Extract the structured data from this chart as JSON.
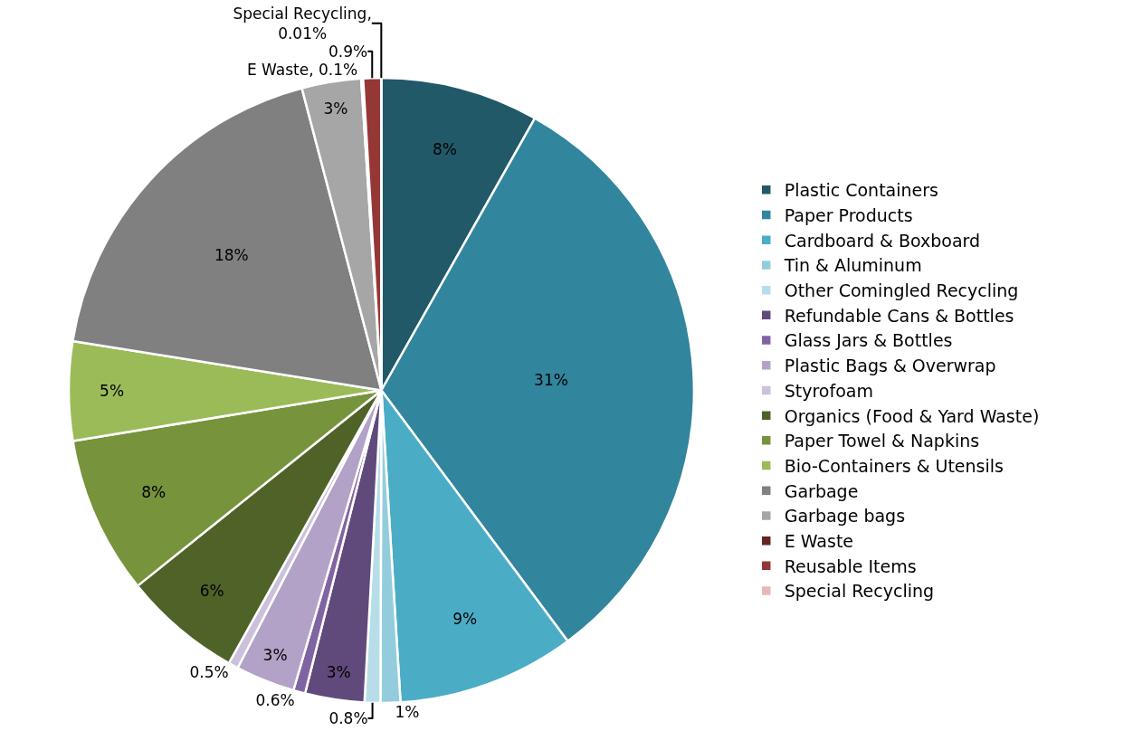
{
  "chart_data": {
    "type": "pie",
    "categories": [
      "Plastic Containers",
      "Paper Products",
      "Cardboard & Boxboard",
      "Tin & Aluminum",
      "Other Comingled Recycling",
      "Refundable Cans & Bottles",
      "Glass Jars & Bottles",
      "Plastic Bags & Overwrap",
      "Styrofoam",
      "Organics (Food & Yard Waste)",
      "Paper Towel & Napkins",
      "Bio-Containers & Utensils",
      "Garbage",
      "Garbage bags",
      "E Waste",
      "Reusable Items",
      "Special Recycling"
    ],
    "values": [
      8,
      31,
      9,
      1,
      0.8,
      3,
      0.6,
      3,
      0.5,
      6,
      8,
      5,
      18,
      3,
      0.1,
      0.9,
      0.01
    ],
    "value_labels": [
      "8%",
      "31%",
      "9%",
      "1%",
      "0.8%",
      "3%",
      "0.6%",
      "3%",
      "0.5%",
      "6%",
      "8%",
      "5%",
      "18%",
      "3%",
      "E Waste, 0.1%",
      "0.9%",
      "Special Recycling,\n0.01%"
    ],
    "colors": [
      "#215968",
      "#31859c",
      "#4bacc6",
      "#93cddd",
      "#b7dee8",
      "#604a7b",
      "#8064a2",
      "#b3a2c7",
      "#ccc1da",
      "#4f6228",
      "#77933c",
      "#9bbb59",
      "#808080",
      "#a6a6a6",
      "#632523",
      "#953735",
      "#e6b9b8"
    ],
    "legend": "right"
  }
}
